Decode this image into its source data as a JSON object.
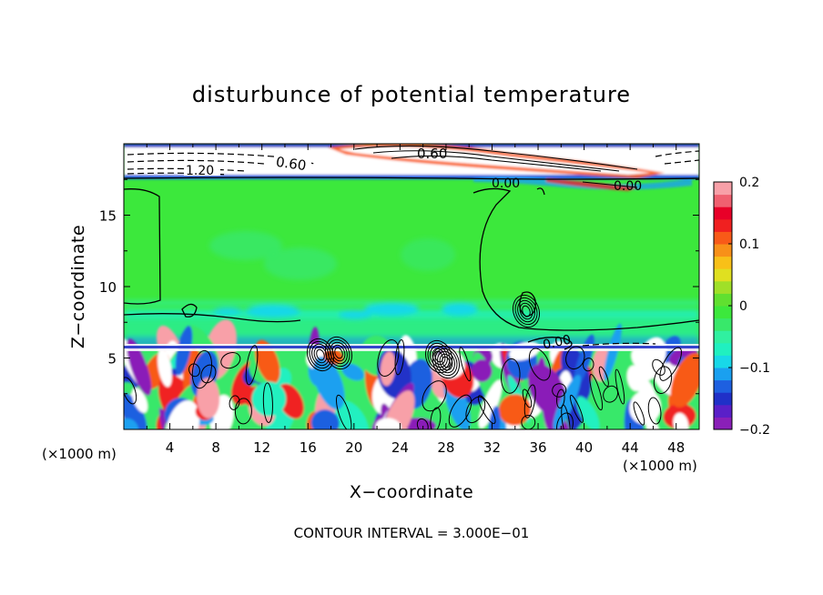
{
  "chart_data": {
    "type": "heatmap",
    "title": "disturbunce of potential temperature",
    "xlabel": "X−coordinate",
    "ylabel": "Z−coordinate",
    "x_unit_left": "(×1000 m)",
    "x_unit_right": "(×1000 m)",
    "x_range": [
      0,
      50
    ],
    "y_range": [
      0,
      20
    ],
    "x_ticks": [
      4,
      8,
      12,
      16,
      20,
      24,
      28,
      32,
      36,
      40,
      44,
      48
    ],
    "y_ticks": [
      5,
      10,
      15
    ],
    "colorbar": {
      "range": [
        -0.2,
        0.2
      ],
      "tick_values": [
        0.2,
        0.1,
        0,
        -0.1,
        -0.2
      ],
      "tick_labels": [
        "0.2",
        "0.1",
        "0",
        "−0.1",
        "−0.2"
      ],
      "colors": [
        "#8a1fb8",
        "#5a1fc8",
        "#2030c8",
        "#1e60e0",
        "#1aa0f0",
        "#18d8e8",
        "#20f0c0",
        "#30f0a0",
        "#38e86a",
        "#3ce83c",
        "#60e030",
        "#a0e028",
        "#e0e020",
        "#f8c018",
        "#f89018",
        "#f85a18",
        "#f02020",
        "#e80028",
        "#f06070",
        "#f8a0a8"
      ]
    },
    "contour_labels": [
      "1.20",
      "0.60",
      "0.60",
      "0.00",
      "0.00",
      "0.00"
    ],
    "footer": "CONTOUR INTERVAL = 3.000E−01",
    "grid": false
  }
}
